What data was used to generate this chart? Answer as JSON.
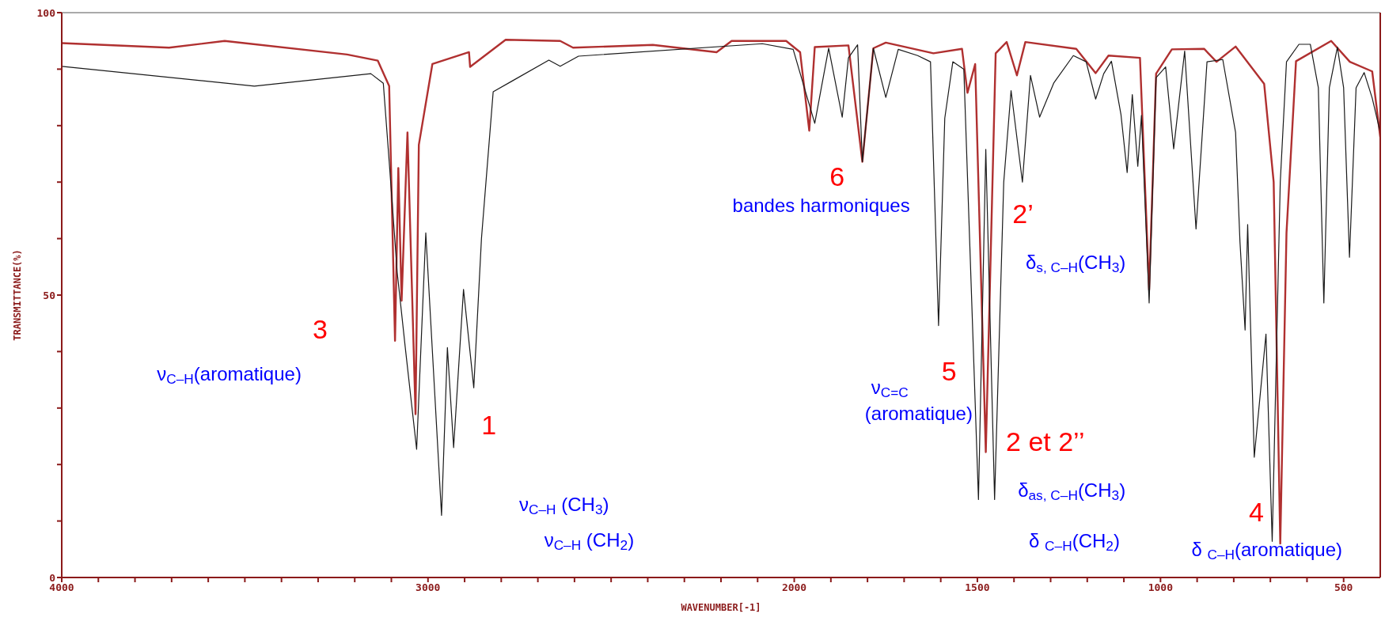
{
  "chart_data": {
    "type": "line",
    "xlabel": "WAVENUMBER[-1]",
    "ylabel": "TRANSMITTANCE(%)",
    "xlim": [
      4000,
      400
    ],
    "ylim": [
      0,
      100
    ],
    "xticks": [
      4000,
      {
        "value": 3900,
        "label": null
      },
      {
        "value": 3800,
        "label": null
      },
      {
        "value": 3700,
        "label": null
      },
      {
        "value": 3600,
        "label": null
      },
      {
        "value": 3500,
        "label": null
      },
      {
        "value": 3400,
        "label": null
      },
      {
        "value": 3300,
        "label": null
      },
      {
        "value": 3200,
        "label": null
      },
      {
        "value": 3100,
        "label": null
      },
      3000,
      {
        "value": 2900,
        "label": null
      },
      {
        "value": 2800,
        "label": null
      },
      {
        "value": 2700,
        "label": null
      },
      {
        "value": 2600,
        "label": null
      },
      {
        "value": 2500,
        "label": null
      },
      {
        "value": 2400,
        "label": null
      },
      {
        "value": 2300,
        "label": null
      },
      {
        "value": 2200,
        "label": null
      },
      {
        "value": 2100,
        "label": null
      },
      2000,
      {
        "value": 1900,
        "label": null
      },
      {
        "value": 1800,
        "label": null
      },
      {
        "value": 1700,
        "label": null
      },
      {
        "value": 1600,
        "label": null
      },
      1500,
      {
        "value": 1400,
        "label": null
      },
      {
        "value": 1300,
        "label": null
      },
      {
        "value": 1200,
        "label": null
      },
      {
        "value": 1100,
        "label": null
      },
      1000,
      {
        "value": 900,
        "label": null
      },
      {
        "value": 800,
        "label": null
      },
      {
        "value": 700,
        "label": null
      },
      {
        "value": 600,
        "label": null
      },
      500
    ],
    "yticks": [
      0,
      {
        "value": 10,
        "label": null
      },
      {
        "value": 20,
        "label": null
      },
      {
        "value": 30,
        "label": null
      },
      {
        "value": 40,
        "label": null
      },
      50,
      {
        "value": 60,
        "label": null
      },
      {
        "value": 70,
        "label": null
      },
      {
        "value": 80,
        "label": null
      },
      {
        "value": 90,
        "label": null
      },
      100
    ],
    "grid": false,
    "legend": false,
    "marker": "none",
    "line_style": "solid",
    "series": [
      {
        "color": "#1a1a1a",
        "x": [
          4000,
          3474,
          3156,
          3122,
          3106,
          3084,
          3062,
          3031,
          3006,
          2963,
          2947,
          2930,
          2903,
          2875,
          2854,
          2822,
          2773,
          2670,
          2639,
          2589,
          2087,
          2003,
          1944,
          1906,
          1869,
          1852,
          1827,
          1814,
          1784,
          1750,
          1716,
          1663,
          1628,
          1606,
          1589,
          1567,
          1537,
          1497,
          1477,
          1453,
          1428,
          1408,
          1377,
          1355,
          1330,
          1291,
          1238,
          1203,
          1177,
          1155,
          1134,
          1108,
          1091,
          1077,
          1062,
          1052,
          1031,
          1012,
          986,
          964,
          934,
          903,
          873,
          830,
          795,
          783,
          769,
          762,
          744,
          712,
          695,
          673,
          656,
          622,
          591,
          569,
          554,
          539,
          517,
          500,
          484,
          466,
          444,
          422,
          400
        ],
        "values": [
          90.5,
          87,
          89.2,
          87.5,
          73.7,
          54,
          40.7,
          22.7,
          61,
          11,
          40.7,
          23,
          51,
          33.6,
          60,
          86,
          87.8,
          91.6,
          90.5,
          92.3,
          94.5,
          93.5,
          80.4,
          93.7,
          81.5,
          92,
          94.3,
          73.6,
          93.7,
          85,
          93.5,
          92.4,
          91.3,
          44.6,
          81.3,
          91.3,
          90,
          13.8,
          75.8,
          13.8,
          70,
          86.2,
          70,
          88.9,
          81.5,
          87.6,
          92.4,
          91.3,
          84.7,
          89.2,
          91.4,
          82,
          71.7,
          85.5,
          72.8,
          81.8,
          48.6,
          88.5,
          90.4,
          75.9,
          93.2,
          61.7,
          91.3,
          91.7,
          78.8,
          59.4,
          43.8,
          62.5,
          21.3,
          43.1,
          6.4,
          70,
          91.3,
          94.4,
          94.4,
          86.7,
          48.6,
          86.7,
          93.9,
          86.7,
          56.7,
          86.7,
          89.4,
          84.9,
          78.8
        ]
      },
      {
        "color": "#b03030",
        "x": [
          4000,
          3707,
          3555,
          3221,
          3137,
          3106,
          3090,
          3081,
          3072,
          3056,
          3034,
          3025,
          2988,
          2888,
          2885,
          2788,
          2639,
          2604,
          2386,
          2212,
          2171,
          2022,
          1984,
          1959,
          1944,
          1852,
          1814,
          1784,
          1750,
          1620,
          1542,
          1527,
          1506,
          1477,
          1450,
          1420,
          1392,
          1369,
          1230,
          1177,
          1142,
          1056,
          1031,
          1012,
          969,
          881,
          847,
          795,
          717,
          691,
          673,
          656,
          630,
          534,
          483,
          422,
          400
        ],
        "values": [
          94.6,
          93.8,
          95,
          92.6,
          91.5,
          87,
          41.9,
          72.5,
          49,
          78.8,
          28.9,
          76.6,
          90.9,
          93,
          90.4,
          95.2,
          95,
          93.8,
          94.3,
          93,
          95,
          95,
          93,
          79.1,
          93.9,
          94.2,
          73.6,
          93.7,
          94.7,
          92.8,
          93.6,
          85.8,
          90.9,
          22.2,
          92.8,
          94.8,
          88.9,
          94.8,
          93.6,
          89.3,
          92.4,
          92,
          50.9,
          89.2,
          93.5,
          93.6,
          91.3,
          94,
          87.4,
          70,
          6,
          61,
          91.4,
          95,
          91.3,
          89.6,
          78
        ]
      }
    ],
    "annotations": [
      "3",
      "ν$_{C–H}$(aromatique)",
      "1",
      "ν$_{C–H}$ (CH$_{3}$)",
      "ν$_{C–H}$ (CH$_{2}$)",
      "6",
      "bandes harmoniques",
      "ν$_{C=C}$",
      "(aromatique)",
      "5",
      "2’",
      "δ$_{s, C–H}$(CH$_{3}$)",
      "2 et 2’’",
      "δ$_{as, C–H}$(CH$_{3}$)",
      "δ $_{C–H}$(CH$_{2}$)",
      "4",
      "δ $_{C–H}$(aromatique)"
    ]
  }
}
